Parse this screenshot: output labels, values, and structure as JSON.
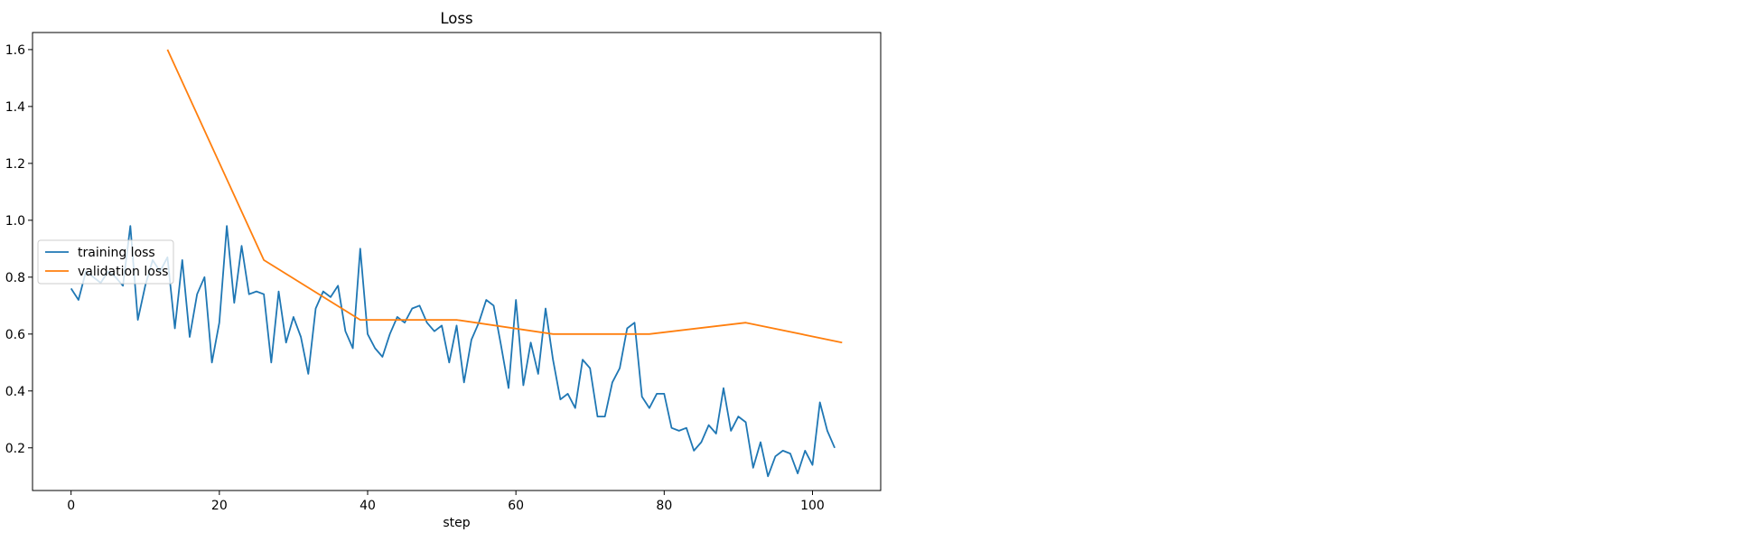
{
  "chart_data": {
    "type": "line",
    "title": "Loss",
    "xlabel": "step",
    "ylabel": "",
    "xlim": [
      -5.2,
      109.2
    ],
    "ylim": [
      0.05,
      1.66
    ],
    "xticks": [
      0,
      20,
      40,
      60,
      80,
      100
    ],
    "yticks": [
      0.2,
      0.4,
      0.6,
      0.8,
      1.0,
      1.2,
      1.4,
      1.6
    ],
    "grid": false,
    "legend_position": "center-left",
    "series": [
      {
        "name": "training loss",
        "color": "#1f77b4",
        "x": [
          0,
          1,
          2,
          3,
          4,
          5,
          6,
          7,
          8,
          9,
          10,
          11,
          12,
          13,
          14,
          15,
          16,
          17,
          18,
          19,
          20,
          21,
          22,
          23,
          24,
          25,
          26,
          27,
          28,
          29,
          30,
          31,
          32,
          33,
          34,
          35,
          36,
          37,
          38,
          39,
          40,
          41,
          42,
          43,
          44,
          45,
          46,
          47,
          48,
          49,
          50,
          51,
          52,
          53,
          54,
          55,
          56,
          57,
          58,
          59,
          60,
          61,
          62,
          63,
          64,
          65,
          66,
          67,
          68,
          69,
          70,
          71,
          72,
          73,
          74,
          75,
          76,
          77,
          78,
          79,
          80,
          81,
          82,
          83,
          84,
          85,
          86,
          87,
          88,
          89,
          90,
          91,
          92,
          93,
          94,
          95,
          96,
          97,
          98,
          99,
          100,
          101,
          102,
          103
        ],
        "y": [
          0.76,
          0.72,
          0.82,
          0.8,
          0.78,
          0.82,
          0.8,
          0.77,
          0.98,
          0.65,
          0.77,
          0.86,
          0.82,
          0.87,
          0.62,
          0.86,
          0.59,
          0.74,
          0.8,
          0.5,
          0.64,
          0.98,
          0.71,
          0.91,
          0.74,
          0.75,
          0.74,
          0.5,
          0.75,
          0.57,
          0.66,
          0.59,
          0.46,
          0.69,
          0.75,
          0.73,
          0.77,
          0.61,
          0.55,
          0.9,
          0.6,
          0.55,
          0.52,
          0.6,
          0.66,
          0.64,
          0.69,
          0.7,
          0.64,
          0.61,
          0.63,
          0.5,
          0.63,
          0.43,
          0.58,
          0.64,
          0.72,
          0.7,
          0.56,
          0.41,
          0.72,
          0.42,
          0.57,
          0.46,
          0.69,
          0.51,
          0.37,
          0.39,
          0.34,
          0.51,
          0.48,
          0.31,
          0.31,
          0.43,
          0.48,
          0.62,
          0.64,
          0.38,
          0.34,
          0.39,
          0.39,
          0.27,
          0.26,
          0.27,
          0.19,
          0.22,
          0.28,
          0.25,
          0.41,
          0.26,
          0.31,
          0.29,
          0.13,
          0.22,
          0.1,
          0.17,
          0.19,
          0.18,
          0.11,
          0.19,
          0.14,
          0.36,
          0.26,
          0.2
        ]
      },
      {
        "name": "validation loss",
        "color": "#ff7f0e",
        "x": [
          13,
          26,
          39,
          52,
          65,
          78,
          91,
          104
        ],
        "y": [
          1.6,
          0.86,
          0.65,
          0.65,
          0.6,
          0.6,
          0.64,
          0.57
        ]
      }
    ]
  }
}
